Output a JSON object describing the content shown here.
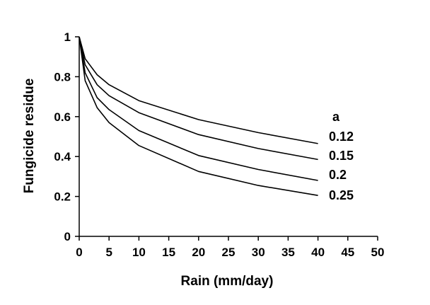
{
  "chart_data": {
    "type": "line",
    "title": "",
    "xlabel": "Rain (mm/day)",
    "ylabel": "Fungicide residue",
    "xlim": [
      0,
      50
    ],
    "ylim": [
      0,
      1
    ],
    "xticks": [
      0,
      5,
      10,
      15,
      20,
      25,
      30,
      35,
      40,
      45,
      50
    ],
    "yticks": [
      0,
      0.2,
      0.4,
      0.6,
      0.8,
      1
    ],
    "xtick_labels": [
      "0",
      "5",
      "10",
      "15",
      "20",
      "25",
      "30",
      "35",
      "40",
      "45",
      "50"
    ],
    "ytick_labels": [
      "0",
      "0.2",
      "0.4",
      "0.6",
      "0.8",
      "1"
    ],
    "grid": false,
    "legend_title": "a",
    "legend_placement": "right",
    "line_color": "#000000",
    "x": [
      0,
      1,
      3,
      5,
      10,
      20,
      30,
      40
    ],
    "series": [
      {
        "name": "0.12",
        "values": [
          1.0,
          0.89,
          0.81,
          0.76,
          0.68,
          0.585,
          0.52,
          0.465
        ]
      },
      {
        "name": "0.15",
        "values": [
          1.0,
          0.86,
          0.76,
          0.705,
          0.62,
          0.51,
          0.44,
          0.385
        ]
      },
      {
        "name": "0.2",
        "values": [
          1.0,
          0.82,
          0.695,
          0.635,
          0.53,
          0.405,
          0.335,
          0.28
        ]
      },
      {
        "name": "0.25",
        "values": [
          1.0,
          0.78,
          0.645,
          0.57,
          0.455,
          0.325,
          0.255,
          0.205
        ]
      }
    ]
  }
}
